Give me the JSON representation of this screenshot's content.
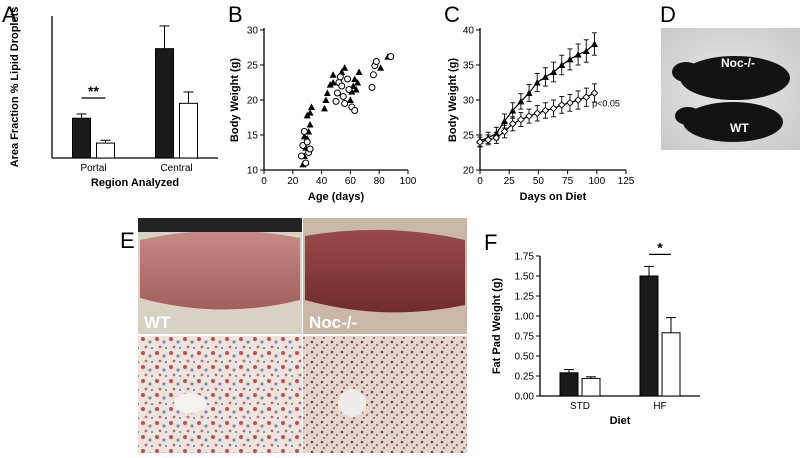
{
  "panels": {
    "A": "A",
    "B": "B",
    "C": "C",
    "D": "D",
    "E": "E",
    "F": "F"
  },
  "photo_labels": {
    "D_top": "Noc-/-",
    "D_bottom": "WT",
    "E_left": "WT",
    "E_right": "Noc-/-"
  },
  "colors": {
    "filled": "#1a1a1a",
    "open": "#ffffff",
    "mouse": "#111111",
    "liver_wt": "#b06a6a",
    "liver_noc": "#8a3a38"
  },
  "chart_data": [
    {
      "id": "A",
      "type": "bar",
      "xlabel": "Region Analyzed",
      "ylabel": "Area Fraction % Lipid Droplets",
      "categories": [
        "Portal",
        "Central"
      ],
      "series": [
        {
          "values": [
            5.6,
            15.4
          ],
          "errors": [
            0.6,
            3.2
          ],
          "fill": "filled"
        },
        {
          "values": [
            2.1,
            7.7
          ],
          "errors": [
            0.4,
            1.6
          ],
          "fill": "open"
        }
      ],
      "ylim": [
        0,
        20
      ],
      "yticks": [],
      "annotations": [
        {
          "text": "**",
          "category": "Portal"
        }
      ]
    },
    {
      "id": "B",
      "type": "scatter",
      "xlabel": "Age (days)",
      "ylabel": "Body Weight (g)",
      "xlim": [
        0,
        100
      ],
      "ylim": [
        10,
        30
      ],
      "xticks": [
        0,
        20,
        40,
        60,
        80,
        100
      ],
      "yticks": [
        10,
        15,
        20,
        25,
        30
      ],
      "series": [
        {
          "marker": "triangle",
          "points": [
            [
              27,
              10.8
            ],
            [
              28,
              12
            ],
            [
              29,
              13.2
            ],
            [
              30,
              14.5
            ],
            [
              31,
              15.5
            ],
            [
              32,
              16.5
            ],
            [
              28,
              14.8
            ],
            [
              30,
              17.8
            ],
            [
              32,
              18.2
            ],
            [
              33,
              19
            ],
            [
              42,
              18.8
            ],
            [
              43,
              20
            ],
            [
              44,
              21
            ],
            [
              46,
              22.2
            ],
            [
              48,
              23.6
            ],
            [
              48,
              22.5
            ],
            [
              52,
              21
            ],
            [
              53,
              22.5
            ],
            [
              54,
              24
            ],
            [
              56,
              24.6
            ],
            [
              60,
              20
            ],
            [
              61,
              21.2
            ],
            [
              62,
              22
            ],
            [
              63,
              23
            ],
            [
              64,
              21.5
            ],
            [
              65,
              22.5
            ],
            [
              66,
              24
            ],
            [
              81,
              24.6
            ],
            [
              86,
              26.2
            ]
          ]
        },
        {
          "marker": "circle",
          "points": [
            [
              26,
              12
            ],
            [
              27,
              13.5
            ],
            [
              28,
              15.5
            ],
            [
              29,
              11
            ],
            [
              30,
              14
            ],
            [
              31,
              12.5
            ],
            [
              32,
              13
            ],
            [
              50,
              19.8
            ],
            [
              51,
              21
            ],
            [
              52,
              22.5
            ],
            [
              53,
              23.3
            ],
            [
              54,
              22
            ],
            [
              55,
              20.5
            ],
            [
              56,
              19.5
            ],
            [
              58,
              23
            ],
            [
              59,
              21.5
            ],
            [
              61,
              19
            ],
            [
              63,
              18.5
            ],
            [
              75,
              21.8
            ],
            [
              76,
              23.6
            ],
            [
              77,
              24.9
            ],
            [
              78,
              25.5
            ],
            [
              88,
              26.2
            ]
          ]
        }
      ]
    },
    {
      "id": "C",
      "type": "line",
      "xlabel": "Days on Diet",
      "ylabel": "Body Weight (g)",
      "xlim": [
        0,
        125
      ],
      "ylim": [
        20,
        40
      ],
      "xticks": [
        0,
        25,
        50,
        75,
        100,
        125
      ],
      "yticks": [
        20,
        25,
        30,
        35,
        40
      ],
      "series": [
        {
          "marker": "triangle",
          "x": [
            0,
            7,
            14,
            21,
            28,
            35,
            42,
            49,
            56,
            63,
            70,
            77,
            84,
            91,
            98
          ],
          "y": [
            24.2,
            24.6,
            25.2,
            27,
            28.5,
            29.8,
            31,
            32.5,
            33.3,
            34,
            35,
            35.8,
            36.5,
            37,
            38
          ],
          "err": [
            0.8,
            0.8,
            0.9,
            1,
            1.1,
            1.1,
            1.2,
            1.3,
            1.3,
            1.4,
            1.4,
            1.5,
            1.5,
            1.6,
            1.6
          ]
        },
        {
          "marker": "circle",
          "x": [
            0,
            7,
            14,
            21,
            28,
            35,
            42,
            49,
            56,
            63,
            70,
            77,
            84,
            91,
            98
          ],
          "y": [
            24,
            24.3,
            24.6,
            25.5,
            26.6,
            27.2,
            27.7,
            28.1,
            28.5,
            28.8,
            29.3,
            29.6,
            30,
            30.4,
            31
          ],
          "err": [
            0.7,
            0.7,
            0.8,
            0.9,
            1,
            1,
            1,
            1.1,
            1.1,
            1.2,
            1.2,
            1.2,
            1.3,
            1.3,
            1.3
          ]
        }
      ],
      "annotations": [
        {
          "text": "p<0.05"
        }
      ]
    },
    {
      "id": "F",
      "type": "bar",
      "xlabel": "Diet",
      "ylabel": "Fat Pad Weight (g)",
      "categories": [
        "STD",
        "HF"
      ],
      "series": [
        {
          "values": [
            0.29,
            1.5
          ],
          "errors": [
            0.04,
            0.12
          ],
          "fill": "filled"
        },
        {
          "values": [
            0.22,
            0.79
          ],
          "errors": [
            0.02,
            0.19
          ],
          "fill": "open"
        }
      ],
      "ylim": [
        0,
        1.75
      ],
      "yticks": [
        "0.00",
        "0.25",
        "0.50",
        "0.75",
        "1.00",
        "1.25",
        "1.50",
        "1.75"
      ],
      "annotations": [
        {
          "text": "*",
          "category": "HF"
        }
      ]
    }
  ]
}
